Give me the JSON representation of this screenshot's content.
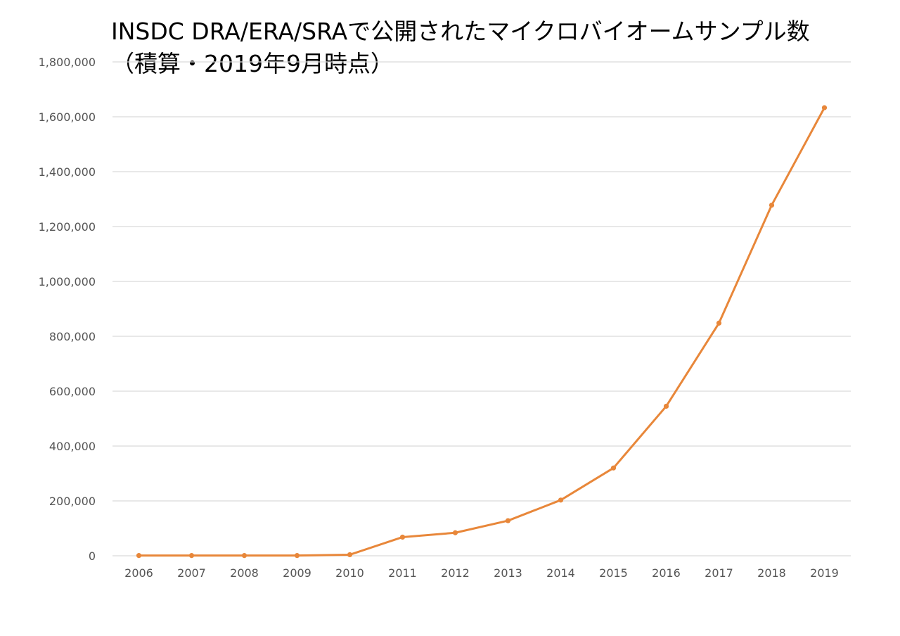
{
  "chart_data": {
    "type": "line",
    "title_lines": [
      "INSDC DRA/ERA/SRAで公開されたマイクロバイオームサンプル数",
      "（積算・2019年9月時点）"
    ],
    "x": [
      "2006",
      "2007",
      "2008",
      "2009",
      "2010",
      "2011",
      "2012",
      "2013",
      "2014",
      "2015",
      "2016",
      "2017",
      "2018",
      "2019"
    ],
    "series": [
      {
        "values": [
          1000,
          1000,
          1000,
          1000,
          4000,
          68000,
          84000,
          128000,
          203000,
          320000,
          545000,
          848000,
          1278000,
          1633000
        ],
        "color": "#E8873A"
      }
    ],
    "yticks": [
      "0",
      "200,000",
      "400,000",
      "600,000",
      "800,000",
      "1,000,000",
      "1,200,000",
      "1,400,000",
      "1,600,000",
      "1,800,000"
    ],
    "ylim": [
      0,
      1800000
    ],
    "grid": true,
    "legend": "none",
    "gridColor": "#d9d9d9",
    "axisLabelColor": "#555555"
  }
}
